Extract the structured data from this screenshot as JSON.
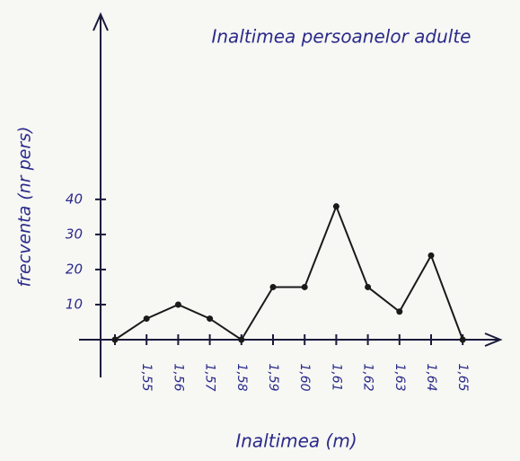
{
  "chart_data": {
    "type": "line",
    "title": "Inaltimea persoanelor adulte",
    "x_label": "Inaltimea (m)",
    "y_label": "frecventa (nr pers)",
    "categories": [
      null,
      "1,55",
      "1,56",
      "1,57",
      "1,58",
      "1,59",
      "1,60",
      "1,61",
      "1,62",
      "1,63",
      "1,64",
      "1,65"
    ],
    "values": [
      0,
      6,
      10,
      6,
      0,
      15,
      15,
      38,
      15,
      8,
      24,
      0
    ],
    "color": "#1a1a1a",
    "ylim": [
      0,
      93
    ],
    "yticks": [
      10,
      20,
      30,
      40
    ]
  }
}
